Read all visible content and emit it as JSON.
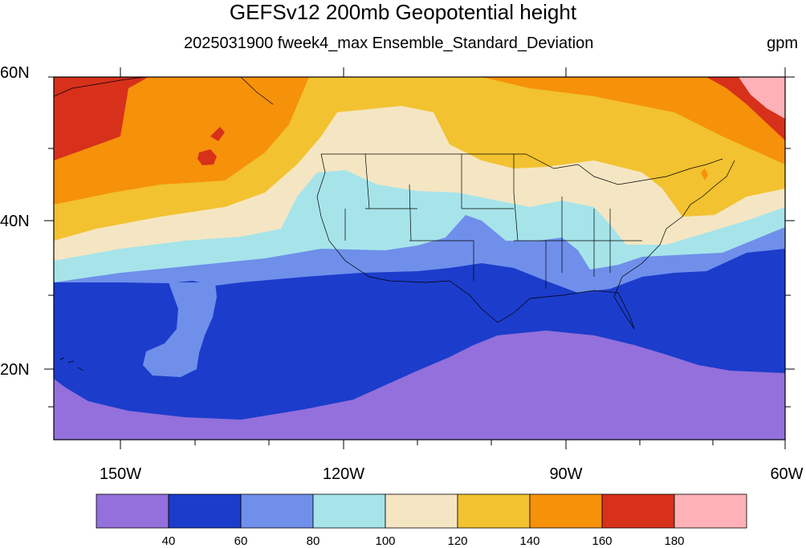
{
  "title": "GEFSv12 200mb Geopotential height",
  "subtitle": "2025031900 fweek4_max Ensemble_Standard_Deviation",
  "units": "gpm",
  "lat_labels": [
    "60N",
    "40N",
    "20N"
  ],
  "lon_labels": [
    "150W",
    "120W",
    "90W",
    "60W"
  ],
  "colorbar": {
    "colors": [
      "#9370db",
      "#1c3ccb",
      "#6f8fea",
      "#a6e4ea",
      "#f5e6c3",
      "#f2c230",
      "#f6910a",
      "#d7301b",
      "#feb1b6"
    ],
    "labels": [
      "40",
      "60",
      "80",
      "100",
      "120",
      "140",
      "160",
      "180"
    ]
  },
  "map": {
    "extent": {
      "lon_min": -159,
      "lon_max": -60,
      "lat_min": 10,
      "lat_max": 60
    },
    "land_overlay": "US state and coastline boundaries"
  }
}
